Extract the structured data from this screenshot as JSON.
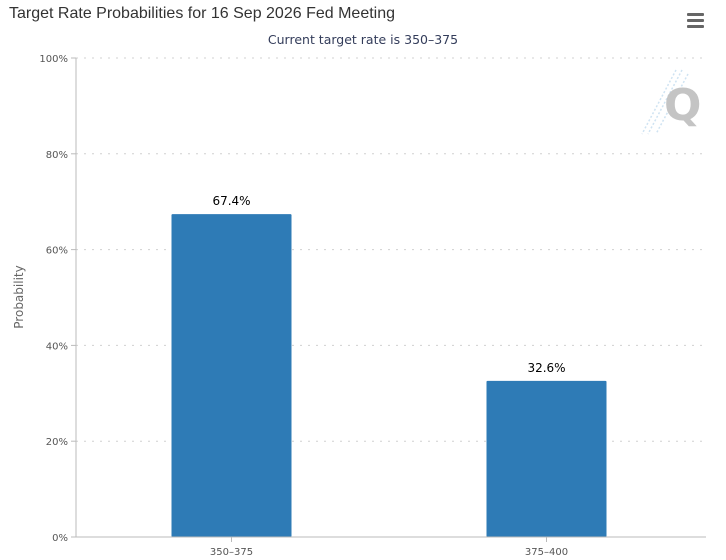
{
  "chart_title": "Target Rate Probabilities for 16 Sep 2026 Fed Meeting",
  "subtitle": "Current target rate is 350–375",
  "menu": {
    "icon": "hamburger-menu-icon"
  },
  "watermark": {
    "icon": "q-logo-icon",
    "letter": "Q"
  },
  "colors": {
    "bar": "#2e7bb6",
    "grid": "#d0d0d0",
    "axis": "#bbbbbb",
    "title": "#333333",
    "subtitle": "#333c5a"
  },
  "chart_data": {
    "type": "bar",
    "title": "Target Rate Probabilities for 16 Sep 2026 Fed Meeting",
    "subtitle": "Current target rate is 350–375",
    "xlabel": "",
    "ylabel": "Probability",
    "categories": [
      "350–375",
      "375–400"
    ],
    "values": [
      67.4,
      32.6
    ],
    "data_labels": [
      "67.4%",
      "32.6%"
    ],
    "ylim": [
      0,
      100
    ],
    "yticks": [
      0,
      20,
      40,
      60,
      80,
      100
    ],
    "ytick_labels": [
      "0%",
      "20%",
      "40%",
      "60%",
      "80%",
      "100%"
    ],
    "grid": true,
    "legend": "none"
  }
}
